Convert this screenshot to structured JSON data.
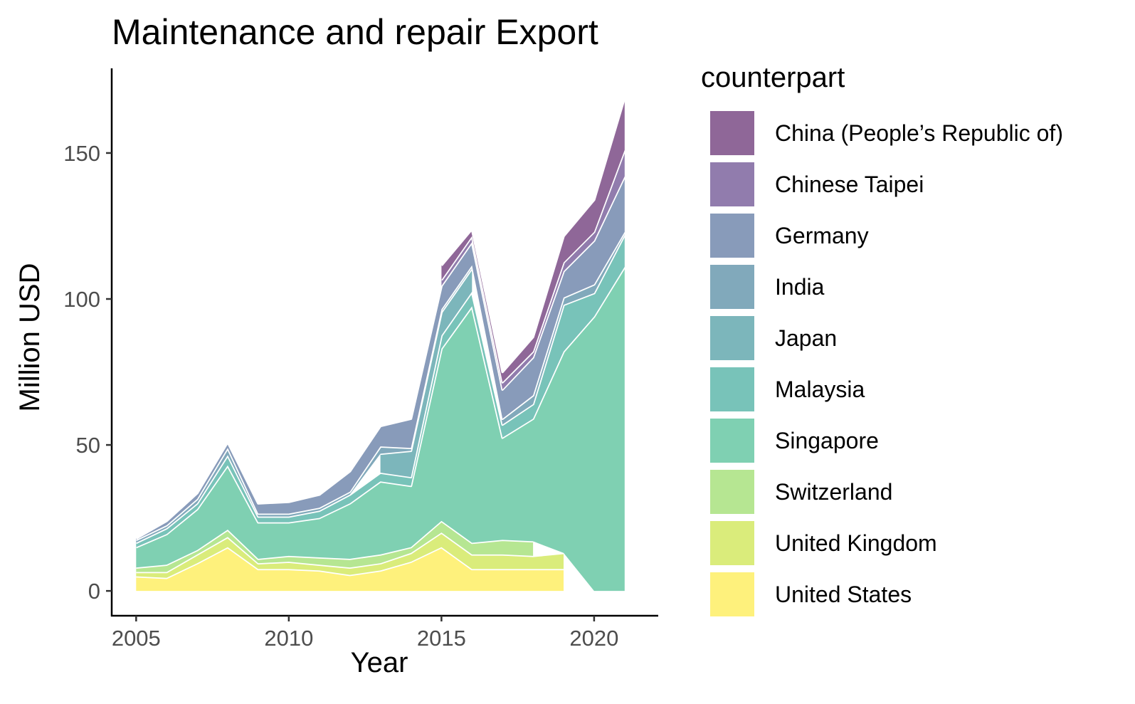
{
  "chart_data": {
    "type": "area",
    "stacked": true,
    "title": "Maintenance and repair Export",
    "xlabel": "Year",
    "ylabel": "Million USD",
    "xlim": [
      2004.2,
      2022.1
    ],
    "ylim": [
      -8.5,
      179
    ],
    "xticks": [
      2005,
      2010,
      2015,
      2020
    ],
    "yticks": [
      0,
      50,
      100,
      150
    ],
    "grid": false,
    "legend_title": "counterpart",
    "legend_position": "right",
    "x": [
      2005,
      2006,
      2007,
      2008,
      2009,
      2010,
      2011,
      2012,
      2013,
      2014,
      2015,
      2016,
      2017,
      2018,
      2019,
      2020,
      2021
    ],
    "series": [
      {
        "name": "United States",
        "color": "#FDE725",
        "values": [
          5,
          4.5,
          9.5,
          15,
          7.5,
          7.5,
          7,
          5.5,
          7,
          10,
          15,
          7.5,
          7.5,
          7.5,
          7.5,
          null,
          null
        ]
      },
      {
        "name": "United Kingdom",
        "color": "#C2DF23",
        "values": [
          1.5,
          2,
          3,
          3.5,
          2,
          2.5,
          2,
          2.5,
          2.5,
          3,
          5,
          5,
          5,
          4.5,
          5.5,
          null,
          null
        ]
      },
      {
        "name": "Switzerland",
        "color": "#86D549",
        "values": [
          1.5,
          2.5,
          1.5,
          2.5,
          1.5,
          2,
          2.5,
          3,
          3,
          2,
          4,
          4,
          5,
          5,
          null,
          null,
          null
        ]
      },
      {
        "name": "Singapore",
        "color": "#2AB07F",
        "values": [
          7,
          10.5,
          14,
          22,
          12.5,
          11.5,
          13.5,
          19,
          25,
          21,
          59,
          81,
          35,
          42,
          69,
          94,
          111
        ]
      },
      {
        "name": "Malaysia",
        "color": "#1E9B8A",
        "values": [
          1.5,
          2,
          2,
          3.5,
          2,
          2,
          2.5,
          3,
          3,
          3,
          4.5,
          5,
          4.5,
          5,
          16,
          8,
          11
        ]
      },
      {
        "name": "Japan",
        "color": "#25858E",
        "values": [
          null,
          null,
          null,
          null,
          null,
          null,
          null,
          null,
          6.5,
          9,
          8,
          8,
          null,
          null,
          null,
          null,
          null
        ]
      },
      {
        "name": "India",
        "color": "#2D708E",
        "values": [
          1,
          1,
          1.5,
          2.5,
          1,
          1,
          1,
          1,
          2.5,
          1,
          1,
          1,
          2,
          3,
          2.5,
          3,
          1
        ]
      },
      {
        "name": "Germany",
        "color": "#38598C",
        "values": [
          0.5,
          1.5,
          2,
          2,
          3.5,
          4,
          4.5,
          7,
          7,
          10,
          8,
          8,
          10,
          13,
          9,
          15,
          19
        ]
      },
      {
        "name": "Chinese Taipei",
        "color": "#482576",
        "values": [
          null,
          null,
          null,
          null,
          null,
          null,
          null,
          null,
          null,
          null,
          2,
          2,
          2.5,
          2,
          3,
          3,
          9
        ]
      },
      {
        "name": "China (People’s Republic of)",
        "color": "#440154",
        "values": [
          null,
          null,
          null,
          null,
          null,
          null,
          null,
          null,
          null,
          null,
          5,
          2.5,
          3.5,
          5,
          9,
          11,
          18
        ]
      }
    ]
  }
}
